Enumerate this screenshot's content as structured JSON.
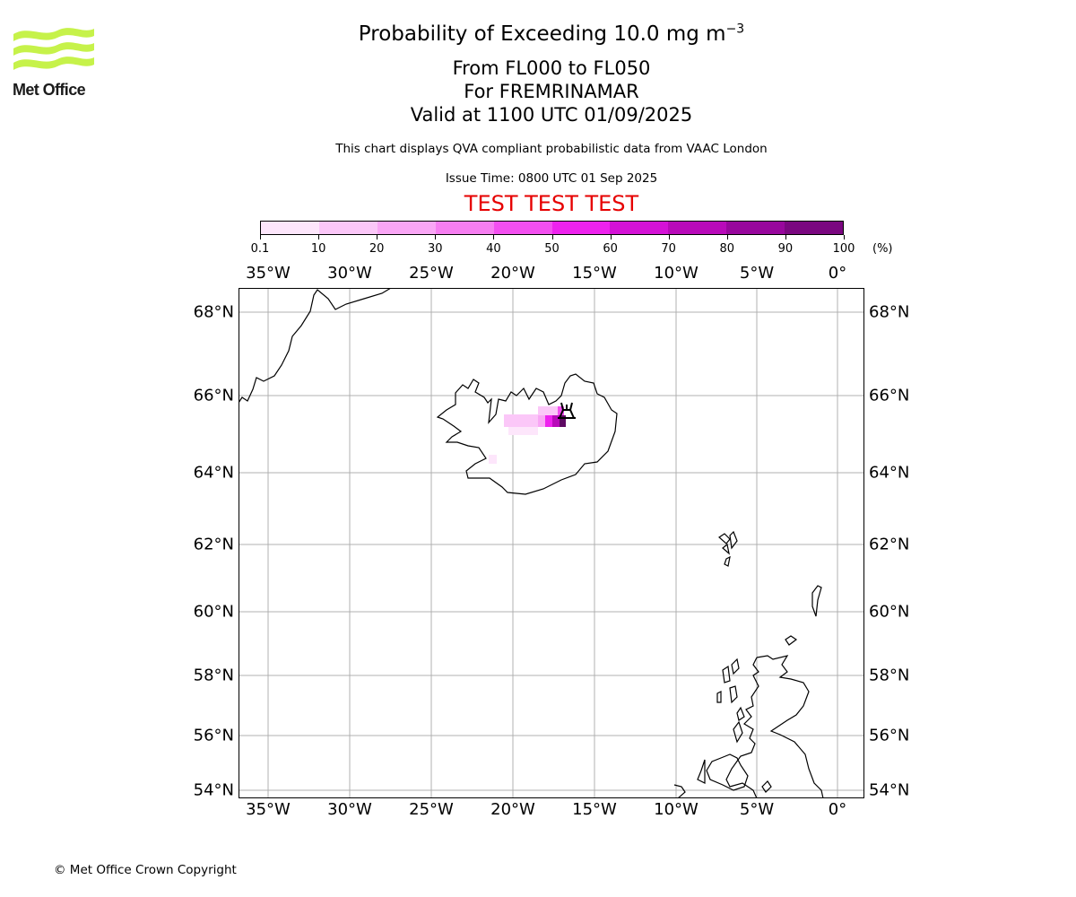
{
  "logo": {
    "text": "Met Office",
    "icon": "met-office-wave-logo",
    "color": "#c6f24a"
  },
  "title": {
    "main": "Probability of Exceeding 10.0 mg m",
    "superscript": "−3",
    "line1": "From FL000 to FL050",
    "line2": "For FREMRINAMAR",
    "line3": "Valid at 1100 UTC 01/09/2025"
  },
  "notes": {
    "description": "This chart displays QVA compliant probabilistic data from VAAC London",
    "issue_time": "Issue Time: 0800 UTC 01 Sep 2025",
    "test_banner": "TEST TEST TEST"
  },
  "colorbar": {
    "ticks": [
      "0.1",
      "10",
      "20",
      "30",
      "40",
      "50",
      "60",
      "70",
      "80",
      "90",
      "100"
    ],
    "unit": "(%)",
    "colors": [
      "#fde6fb",
      "#fbc7f8",
      "#f9a6f5",
      "#f67ef1",
      "#f34ff0",
      "#ee22ee",
      "#d412d6",
      "#b80ab9",
      "#98079d",
      "#7a0780",
      "#5e0a63"
    ]
  },
  "axes": {
    "lon_labels": [
      "35°W",
      "30°W",
      "25°W",
      "20°W",
      "15°W",
      "10°W",
      "5°W",
      "0°"
    ],
    "lat_labels": [
      "68°N",
      "66°N",
      "64°N",
      "62°N",
      "60°N",
      "58°N",
      "56°N",
      "54°N"
    ]
  },
  "markers": {
    "volcano": "volcano-icon"
  },
  "footer": {
    "copyright": "© Met Office Crown Copyright"
  }
}
